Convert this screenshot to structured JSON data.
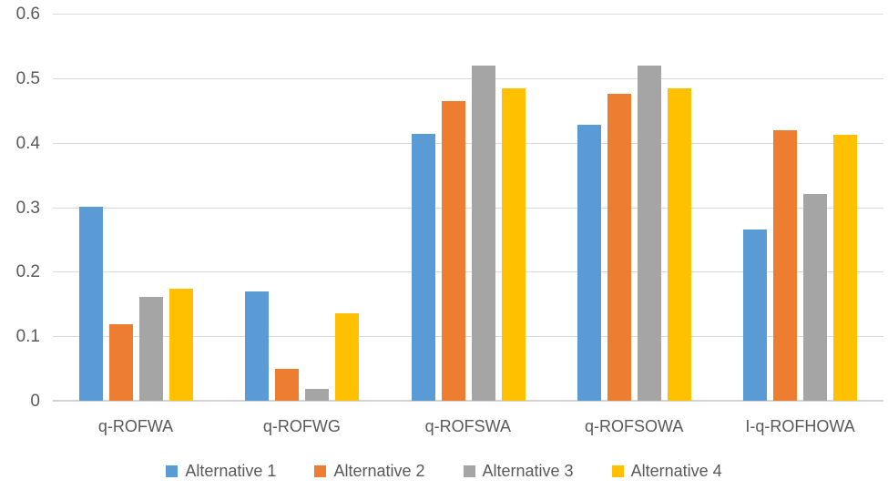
{
  "chart_data": {
    "type": "bar",
    "title": "",
    "xlabel": "",
    "ylabel": "",
    "categories": [
      "q-ROFWA",
      "q-ROFWG",
      "q-ROFSWA",
      "q-ROFSOWA",
      "I-q-ROFHOWA"
    ],
    "series": [
      {
        "name": "Alternative 1",
        "color": "#5B9BD5",
        "values": [
          0.301,
          0.17,
          0.413,
          0.428,
          0.266
        ]
      },
      {
        "name": "Alternative 2",
        "color": "#ED7D31",
        "values": [
          0.119,
          0.05,
          0.465,
          0.476,
          0.419
        ]
      },
      {
        "name": "Alternative 3",
        "color": "#A5A5A5",
        "values": [
          0.161,
          0.018,
          0.52,
          0.52,
          0.32
        ]
      },
      {
        "name": "Alternative 4",
        "color": "#FFC000",
        "values": [
          0.173,
          0.135,
          0.484,
          0.484,
          0.412
        ]
      }
    ],
    "ylim": [
      0,
      0.6
    ],
    "yticks": [
      0,
      0.1,
      0.2,
      0.3,
      0.4,
      0.5,
      0.6
    ],
    "ytick_labels": [
      "0",
      "0.1",
      "0.2",
      "0.3",
      "0.4",
      "0.5",
      "0.6"
    ],
    "grid": true,
    "legend_position": "bottom"
  },
  "styles": {
    "text_color": "#595959",
    "gridline_color": "#D9D9D9",
    "axis_line_color": "#D3D3D3",
    "background": "#FFFFFF"
  }
}
